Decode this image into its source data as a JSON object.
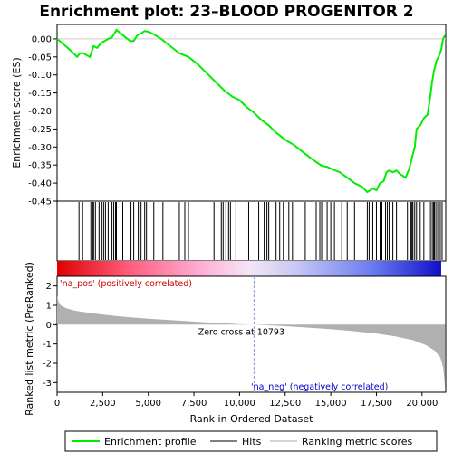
{
  "chart_data": {
    "type": "line",
    "title": "Enrichment plot: 23–BLOOD PROGENITOR 2",
    "top_panel": {
      "ylabel": "Enrichment score (ES)",
      "ylim": [
        -0.45,
        0.04
      ],
      "yticks": [
        "0.00",
        "-0.05",
        "-0.10",
        "-0.15",
        "-0.20",
        "-0.25",
        "-0.30",
        "-0.35",
        "-0.40",
        "-0.45"
      ],
      "ytick_values": [
        0.0,
        -0.05,
        -0.1,
        -0.15,
        -0.2,
        -0.25,
        -0.3,
        -0.35,
        -0.4,
        -0.45
      ],
      "series_color": "#00ee00",
      "es_curve": [
        [
          0,
          0.0
        ],
        [
          700,
          -0.03
        ],
        [
          1100,
          -0.05
        ],
        [
          1250,
          -0.04
        ],
        [
          1450,
          -0.04
        ],
        [
          1600,
          -0.045
        ],
        [
          1800,
          -0.05
        ],
        [
          1900,
          -0.035
        ],
        [
          2000,
          -0.02
        ],
        [
          2200,
          -0.025
        ],
        [
          2400,
          -0.012
        ],
        [
          2600,
          -0.006
        ],
        [
          2800,
          0.0
        ],
        [
          3000,
          0.004
        ],
        [
          3150,
          0.015
        ],
        [
          3250,
          0.025
        ],
        [
          3500,
          0.015
        ],
        [
          3750,
          0.004
        ],
        [
          4000,
          -0.006
        ],
        [
          4200,
          -0.006
        ],
        [
          4400,
          0.01
        ],
        [
          4600,
          0.015
        ],
        [
          4800,
          0.022
        ],
        [
          5000,
          0.02
        ],
        [
          5300,
          0.013
        ],
        [
          5700,
          0.0
        ],
        [
          6200,
          -0.02
        ],
        [
          6700,
          -0.04
        ],
        [
          7200,
          -0.05
        ],
        [
          7700,
          -0.07
        ],
        [
          8200,
          -0.095
        ],
        [
          8700,
          -0.12
        ],
        [
          9200,
          -0.145
        ],
        [
          9600,
          -0.16
        ],
        [
          10000,
          -0.17
        ],
        [
          10400,
          -0.19
        ],
        [
          10800,
          -0.205
        ],
        [
          11200,
          -0.225
        ],
        [
          11600,
          -0.24
        ],
        [
          12000,
          -0.26
        ],
        [
          12500,
          -0.28
        ],
        [
          13000,
          -0.295
        ],
        [
          13500,
          -0.315
        ],
        [
          14000,
          -0.335
        ],
        [
          14300,
          -0.345
        ],
        [
          14500,
          -0.352
        ],
        [
          14800,
          -0.355
        ],
        [
          15100,
          -0.362
        ],
        [
          15500,
          -0.37
        ],
        [
          15900,
          -0.385
        ],
        [
          16300,
          -0.4
        ],
        [
          16700,
          -0.41
        ],
        [
          17000,
          -0.425
        ],
        [
          17300,
          -0.415
        ],
        [
          17500,
          -0.42
        ],
        [
          17700,
          -0.4
        ],
        [
          17900,
          -0.395
        ],
        [
          18050,
          -0.37
        ],
        [
          18200,
          -0.365
        ],
        [
          18400,
          -0.37
        ],
        [
          18600,
          -0.365
        ],
        [
          18800,
          -0.375
        ],
        [
          19100,
          -0.385
        ],
        [
          19300,
          -0.36
        ],
        [
          19450,
          -0.33
        ],
        [
          19600,
          -0.3
        ],
        [
          19700,
          -0.25
        ],
        [
          19900,
          -0.24
        ],
        [
          20100,
          -0.22
        ],
        [
          20300,
          -0.21
        ],
        [
          20450,
          -0.16
        ],
        [
          20550,
          -0.12
        ],
        [
          20650,
          -0.09
        ],
        [
          20800,
          -0.06
        ],
        [
          20950,
          -0.045
        ],
        [
          21050,
          -0.03
        ],
        [
          21150,
          0.0
        ],
        [
          21250,
          0.01
        ]
      ]
    },
    "hits": [
      1200,
      1400,
      1850,
      1950,
      2000,
      2100,
      2300,
      2450,
      2550,
      2650,
      2800,
      3000,
      3100,
      3200,
      3250,
      3600,
      4050,
      4200,
      4450,
      4600,
      4800,
      4900,
      5300,
      5800,
      6700,
      7000,
      7200,
      8600,
      9000,
      9100,
      9250,
      9400,
      9500,
      9800,
      10500,
      11050,
      11350,
      11500,
      11600,
      12000,
      12200,
      12400,
      12700,
      12900,
      13600,
      14200,
      14400,
      14500,
      14800,
      15000,
      15200,
      15600,
      15900,
      16300,
      17000,
      17100,
      17300,
      17500,
      17700,
      17800,
      18000,
      18100,
      18200,
      18400,
      18600,
      19200,
      19350,
      19400,
      19450,
      19500,
      19600,
      19700,
      19900,
      20100,
      20400,
      20500,
      20600,
      20650,
      20700,
      20800,
      20900,
      21000,
      21100
    ],
    "bottom_panel": {
      "ylabel": "Ranked list metric (PreRanked)",
      "xlabel": "Rank in Ordered Dataset",
      "ylim": [
        -3.5,
        2.5
      ],
      "yticks": [
        "2",
        "1",
        "0",
        "-1",
        "-2",
        "-3"
      ],
      "ytick_values": [
        2,
        1,
        0,
        -1,
        -2,
        -3
      ],
      "xlim": [
        0,
        21300
      ],
      "xticks": [
        "0",
        "2,500",
        "5,000",
        "7,500",
        "10,000",
        "12,500",
        "15,000",
        "17,500",
        "20,000"
      ],
      "xtick_values": [
        0,
        2500,
        5000,
        7500,
        10000,
        12500,
        15000,
        17500,
        20000
      ],
      "metric_curve": [
        [
          0,
          1.5
        ],
        [
          80,
          1.2
        ],
        [
          200,
          1.0
        ],
        [
          500,
          0.85
        ],
        [
          1000,
          0.72
        ],
        [
          2000,
          0.58
        ],
        [
          3000,
          0.47
        ],
        [
          4000,
          0.38
        ],
        [
          5000,
          0.31
        ],
        [
          6000,
          0.25
        ],
        [
          7000,
          0.19
        ],
        [
          8000,
          0.13
        ],
        [
          9000,
          0.08
        ],
        [
          10000,
          0.03
        ],
        [
          10793,
          0.0
        ],
        [
          11500,
          -0.03
        ],
        [
          12500,
          -0.08
        ],
        [
          13500,
          -0.14
        ],
        [
          14500,
          -0.2
        ],
        [
          15500,
          -0.27
        ],
        [
          16500,
          -0.36
        ],
        [
          17500,
          -0.46
        ],
        [
          18500,
          -0.6
        ],
        [
          19500,
          -0.8
        ],
        [
          20200,
          -1.05
        ],
        [
          20700,
          -1.35
        ],
        [
          21000,
          -1.7
        ],
        [
          21150,
          -2.2
        ],
        [
          21230,
          -2.9
        ],
        [
          21260,
          -3.3
        ]
      ],
      "zero_cross_label": "Zero cross at 10793",
      "zero_cross": 10793,
      "pos_label": "'na_pos' (positively correlated)",
      "neg_label": "'na_neg' (negatively correlated)"
    },
    "legend": {
      "items": [
        {
          "label": "Enrichment profile",
          "color": "#00ee00"
        },
        {
          "label": "Hits",
          "color": "#000000"
        },
        {
          "label": "Ranking metric scores",
          "color": "#aaaaaa"
        }
      ]
    }
  }
}
